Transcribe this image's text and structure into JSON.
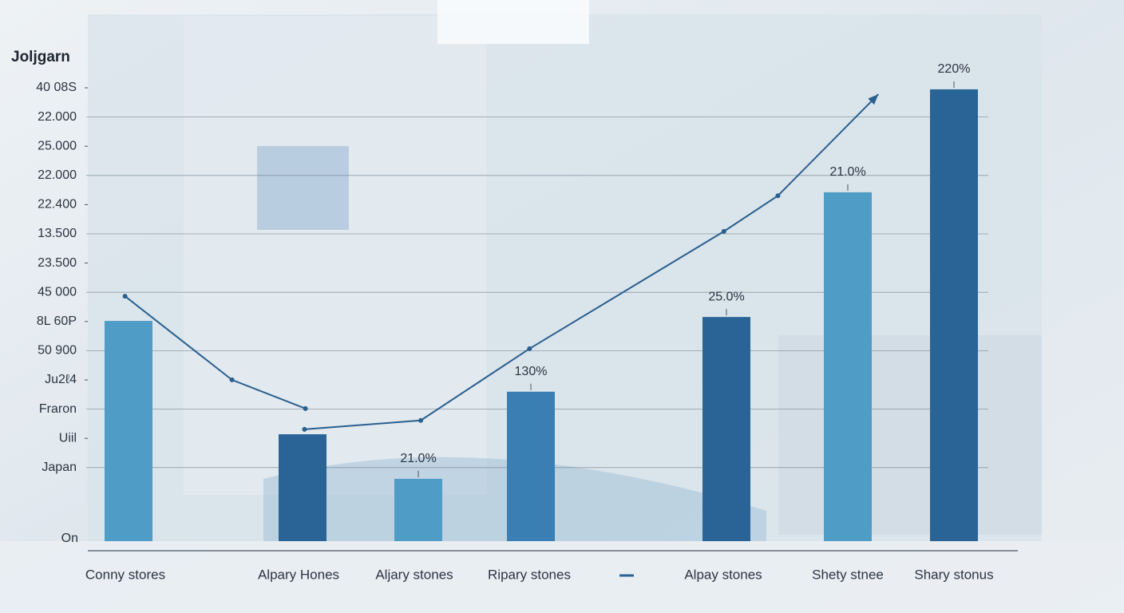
{
  "chart_data": {
    "type": "bar",
    "title": "Joljgarn",
    "y_labels": [
      "40 08S",
      "22.000",
      "25.000",
      "22.000",
      "22.400",
      "13.500",
      "23.500",
      "45 000",
      "8L 60P",
      "50 900",
      "Ju2ℓ4",
      "Fraron",
      "Uiil",
      "Japan",
      "On"
    ],
    "categories": [
      "Conny stores",
      "Alpary Hones",
      "Aljary stones",
      "Ripary stones",
      "Alpay stones",
      "Shety stnee",
      "Shary stonus"
    ],
    "values": [
      44.5,
      21.6,
      12.6,
      30.2,
      45.3,
      70.5,
      91.3
    ],
    "colors": [
      "#4f9cc6",
      "#2a6496",
      "#4f9cc6",
      "#3a7fb4",
      "#2a6496",
      "#4f9cc6",
      "#2a6496"
    ],
    "ylim": [
      0,
      100
    ],
    "annotations": [
      {
        "text": "21.0%",
        "category": "Aljary stones"
      },
      {
        "text": "130%",
        "category": "Ripary stones"
      },
      {
        "text": "25.0%",
        "category": "Alpay stones"
      },
      {
        "text": "21.0%",
        "category": "Shety stnee"
      },
      {
        "text": "220%",
        "category": "Shary stonus"
      }
    ],
    "line": {
      "color": "#2a5f8e",
      "xlim": [
        0,
        100
      ],
      "x": [
        4.0,
        15.5,
        23.4,
        null,
        23.3,
        35.8,
        47.5,
        68.4,
        74.2,
        85.0
      ],
      "values": [
        49.5,
        32.6,
        26.8,
        null,
        22.6,
        24.4,
        38.9,
        62.6,
        69.8,
        90.3
      ]
    }
  }
}
